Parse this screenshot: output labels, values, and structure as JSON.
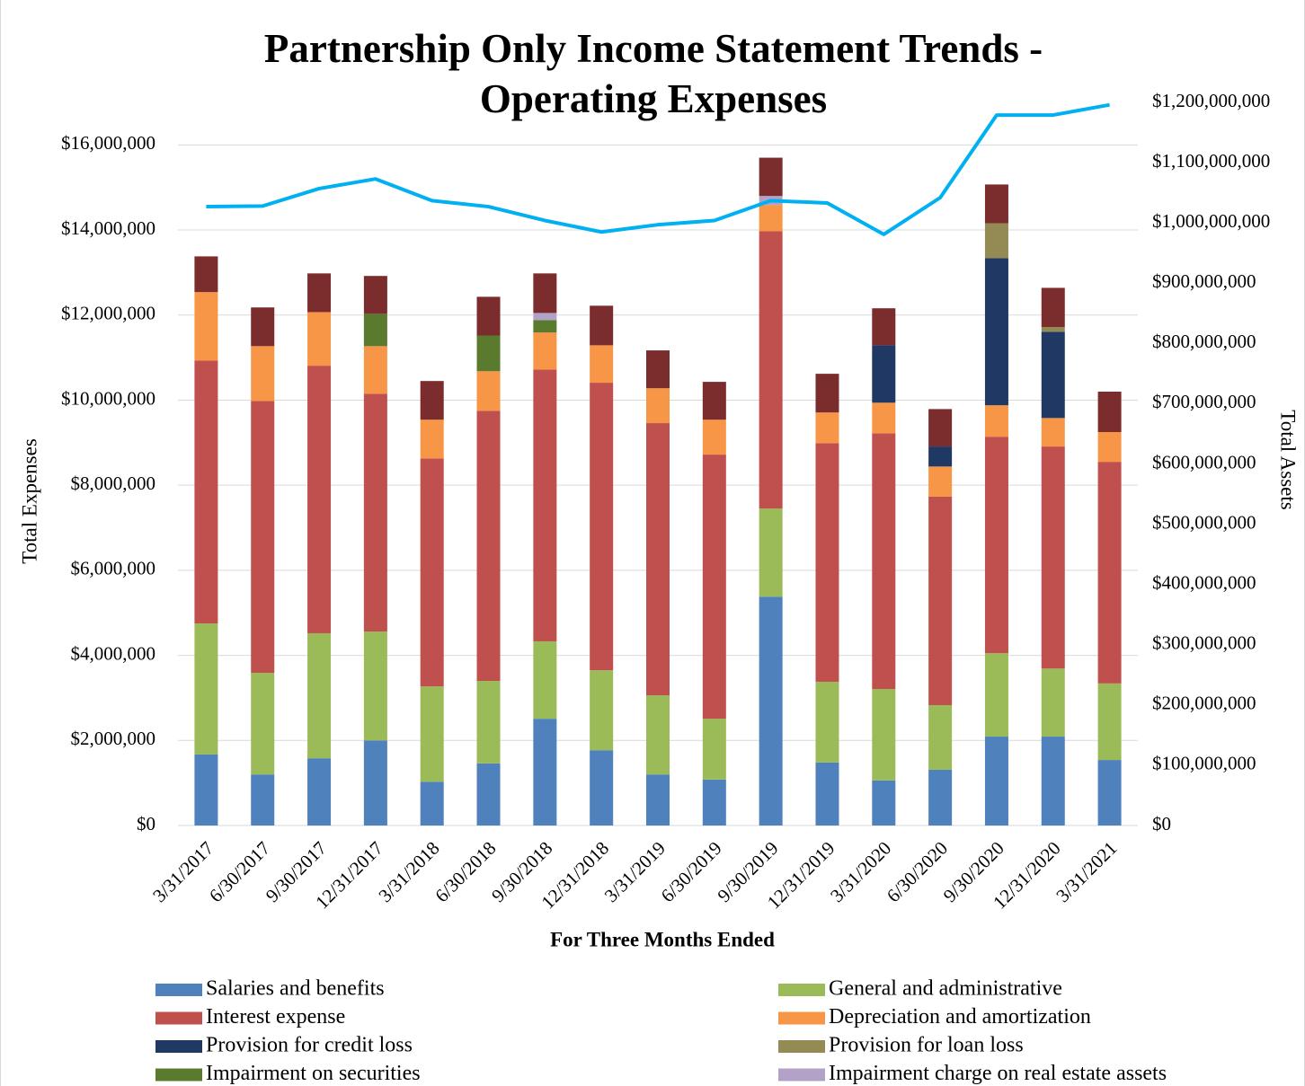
{
  "chart_data": {
    "type": "bar",
    "stacked": true,
    "title": "Partnership Only Income Statement Trends - Operating Expenses",
    "xlabel": "For Three Months Ended",
    "ylabel": "Total Expenses",
    "y2label": "Total Assets",
    "categories": [
      "3/31/2017",
      "6/30/2017",
      "9/30/2017",
      "12/31/2017",
      "3/31/2018",
      "6/30/2018",
      "9/30/2018",
      "12/31/2018",
      "3/31/2019",
      "6/30/2019",
      "9/30/2019",
      "12/31/2019",
      "3/31/2020",
      "6/30/2020",
      "9/30/2020",
      "12/31/2020",
      "3/31/2021"
    ],
    "series": [
      {
        "name": "Salaries and benefits",
        "color": "#4f81bd",
        "values": [
          1670000,
          1200000,
          1580000,
          2000000,
          1030000,
          1460000,
          2510000,
          1770000,
          1200000,
          1080000,
          5380000,
          1480000,
          1060000,
          1310000,
          2090000,
          2090000,
          1540000
        ]
      },
      {
        "name": "General and administrative",
        "color": "#9bbb59",
        "values": [
          3080000,
          2390000,
          2940000,
          2560000,
          2240000,
          1940000,
          1820000,
          1880000,
          1860000,
          1430000,
          2070000,
          1900000,
          2150000,
          1520000,
          1960000,
          1600000,
          1800000
        ]
      },
      {
        "name": "Interest expense",
        "color": "#c0504d",
        "values": [
          6180000,
          6390000,
          6290000,
          5590000,
          5360000,
          6350000,
          6390000,
          6760000,
          6400000,
          6210000,
          6520000,
          5610000,
          6010000,
          4900000,
          5090000,
          5220000,
          5210000
        ]
      },
      {
        "name": "Depreciation and amortization",
        "color": "#f79646",
        "values": [
          1610000,
          1290000,
          1260000,
          1120000,
          910000,
          930000,
          870000,
          880000,
          820000,
          820000,
          620000,
          720000,
          720000,
          710000,
          740000,
          670000,
          700000
        ]
      },
      {
        "name": "Provision for credit loss",
        "color": "#1f3864",
        "values": [
          0,
          0,
          0,
          0,
          0,
          0,
          0,
          0,
          0,
          0,
          0,
          0,
          1350000,
          470000,
          3460000,
          2030000,
          0
        ]
      },
      {
        "name": "Provision for loan loss",
        "color": "#948a54",
        "values": [
          0,
          0,
          0,
          0,
          0,
          0,
          0,
          0,
          0,
          0,
          0,
          0,
          0,
          0,
          820000,
          110000,
          0
        ]
      },
      {
        "name": "Impairment on securities",
        "color": "#5a7a2e",
        "values": [
          0,
          0,
          0,
          760000,
          0,
          840000,
          290000,
          0,
          0,
          0,
          0,
          0,
          0,
          0,
          0,
          0,
          0
        ]
      },
      {
        "name": "Impairment charge on real estate assets",
        "color": "#b2a2c7",
        "values": [
          0,
          0,
          0,
          0,
          0,
          0,
          170000,
          0,
          0,
          0,
          210000,
          0,
          0,
          0,
          0,
          0,
          0
        ]
      },
      {
        "color": "#7b2c2c",
        "values": [
          840000,
          910000,
          910000,
          890000,
          910000,
          910000,
          930000,
          930000,
          890000,
          890000,
          900000,
          910000,
          870000,
          880000,
          910000,
          920000,
          950000
        ]
      },
      {
        "type": "line",
        "axis": "y2",
        "color": "#00b0f0",
        "values": [
          1027000000,
          1028000000,
          1057000000,
          1073000000,
          1037000000,
          1027000000,
          1004000000,
          985000000,
          997000000,
          1004000000,
          1037000000,
          1033000000,
          981000000,
          1042000000,
          1179000000,
          1179000000,
          1196000000
        ]
      }
    ],
    "ylim": [
      0,
      17000000
    ],
    "yticks": [
      {
        "value": 0,
        "label": "$0"
      },
      {
        "value": 2000000,
        "label": "$2,000,000"
      },
      {
        "value": 4000000,
        "label": "$4,000,000"
      },
      {
        "value": 6000000,
        "label": "$6,000,000"
      },
      {
        "value": 8000000,
        "label": "$8,000,000"
      },
      {
        "value": 10000000,
        "label": "$10,000,000"
      },
      {
        "value": 12000000,
        "label": "$12,000,000"
      },
      {
        "value": 14000000,
        "label": "$14,000,000"
      },
      {
        "value": 16000000,
        "label": "$16,000,000"
      }
    ],
    "y2lim": [
      0,
      1200000000
    ],
    "y2ticks": [
      {
        "value": 0,
        "label": "$0"
      },
      {
        "value": 100000000,
        "label": "$100,000,000"
      },
      {
        "value": 200000000,
        "label": "$200,000,000"
      },
      {
        "value": 300000000,
        "label": "$300,000,000"
      },
      {
        "value": 400000000,
        "label": "$400,000,000"
      },
      {
        "value": 500000000,
        "label": "$500,000,000"
      },
      {
        "value": 600000000,
        "label": "$600,000,000"
      },
      {
        "value": 700000000,
        "label": "$700,000,000"
      },
      {
        "value": 800000000,
        "label": "$800,000,000"
      },
      {
        "value": 900000000,
        "label": "$900,000,000"
      },
      {
        "value": 1000000000,
        "label": "$1,000,000,000"
      },
      {
        "value": 1100000000,
        "label": "$1,100,000,000"
      },
      {
        "value": 1200000000,
        "label": "$1,200,000,000"
      }
    ],
    "grid": true,
    "legend": "bottom"
  }
}
